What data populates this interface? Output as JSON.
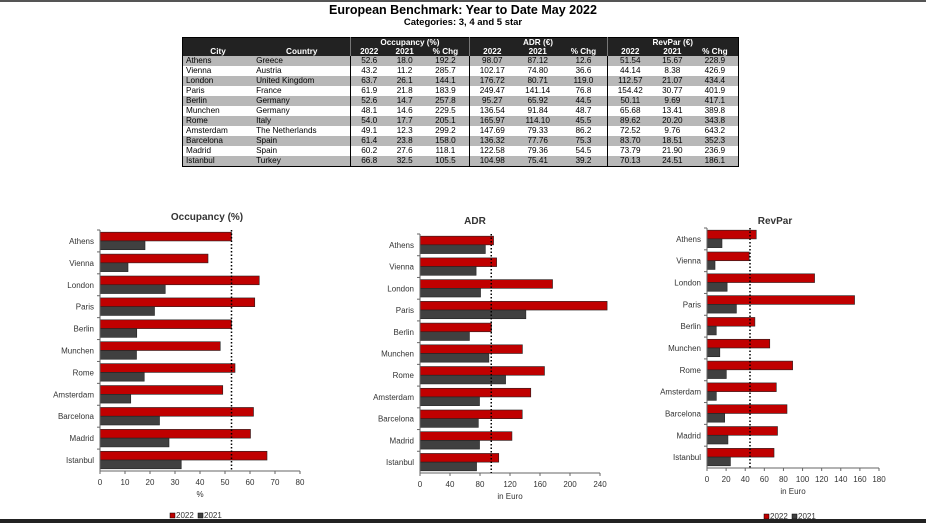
{
  "title": "European Benchmark: Year to Date May 2022",
  "subtitle": "Categories: 3, 4 and 5 star",
  "table": {
    "group_headers": [
      "Occupancy (%)",
      "ADR (€)",
      "RevPar (€)"
    ],
    "columns": [
      "City",
      "Country",
      "2022",
      "2021",
      "% Chg",
      "2022",
      "2021",
      "% Chg",
      "2022",
      "2021",
      "% Chg"
    ],
    "rows": [
      [
        "Athens",
        "Greece",
        "52.6",
        "18.0",
        "192.2",
        "98.07",
        "87.12",
        "12.6",
        "51.54",
        "15.67",
        "228.9"
      ],
      [
        "Vienna",
        "Austria",
        "43.2",
        "11.2",
        "285.7",
        "102.17",
        "74.80",
        "36.6",
        "44.14",
        "8.38",
        "426.9"
      ],
      [
        "London",
        "United Kingdom",
        "63.7",
        "26.1",
        "144.1",
        "176.72",
        "80.71",
        "119.0",
        "112.57",
        "21.07",
        "434.4"
      ],
      [
        "Paris",
        "France",
        "61.9",
        "21.8",
        "183.9",
        "249.47",
        "141.14",
        "76.8",
        "154.42",
        "30.77",
        "401.9"
      ],
      [
        "Berlin",
        "Germany",
        "52.6",
        "14.7",
        "257.8",
        "95.27",
        "65.92",
        "44.5",
        "50.11",
        "9.69",
        "417.1"
      ],
      [
        "Munchen",
        "Germany",
        "48.1",
        "14.6",
        "229.5",
        "136.54",
        "91.84",
        "48.7",
        "65.68",
        "13.41",
        "389.8"
      ],
      [
        "Rome",
        "Italy",
        "54.0",
        "17.7",
        "205.1",
        "165.97",
        "114.10",
        "45.5",
        "89.62",
        "20.20",
        "343.8"
      ],
      [
        "Amsterdam",
        "The Netherlands",
        "49.1",
        "12.3",
        "299.2",
        "147.69",
        "79.33",
        "86.2",
        "72.52",
        "9.76",
        "643.2"
      ],
      [
        "Barcelona",
        "Spain",
        "61.4",
        "23.8",
        "158.0",
        "136.32",
        "77.76",
        "75.3",
        "83.70",
        "18.51",
        "352.3"
      ],
      [
        "Madrid",
        "Spain",
        "60.2",
        "27.6",
        "118.1",
        "122.58",
        "79.36",
        "54.5",
        "73.79",
        "21.90",
        "236.9"
      ],
      [
        "Istanbul",
        "Turkey",
        "66.8",
        "32.5",
        "105.5",
        "104.98",
        "75.41",
        "39.2",
        "70.13",
        "24.51",
        "186.1"
      ]
    ]
  },
  "colors": {
    "s2022": "#c00000",
    "s2021": "#404040"
  },
  "chart_data": [
    {
      "type": "bar",
      "title": "Occupancy (%)",
      "xlabel": "%",
      "xlim": [
        0,
        80
      ],
      "ticks": [
        0,
        10,
        20,
        30,
        40,
        50,
        60,
        70,
        80
      ],
      "reference_line": 52.6,
      "categories": [
        "Athens",
        "Vienna",
        "London",
        "Paris",
        "Berlin",
        "Munchen",
        "Rome",
        "Amsterdam",
        "Barcelona",
        "Madrid",
        "Istanbul"
      ],
      "series": [
        {
          "name": "2022",
          "values": [
            52.6,
            43.2,
            63.7,
            61.9,
            52.6,
            48.1,
            54.0,
            49.1,
            61.4,
            60.2,
            66.8
          ]
        },
        {
          "name": "2021",
          "values": [
            18.0,
            11.2,
            26.1,
            21.8,
            14.7,
            14.6,
            17.7,
            12.3,
            23.8,
            27.6,
            32.5
          ]
        }
      ],
      "legend": "bottom"
    },
    {
      "type": "bar",
      "title": "ADR",
      "xlabel": "in Euro",
      "xlim": [
        0,
        240
      ],
      "ticks": [
        0,
        40,
        80,
        120,
        160,
        200,
        240
      ],
      "reference_line": 95,
      "categories": [
        "Athens",
        "Vienna",
        "London",
        "Paris",
        "Berlin",
        "Munchen",
        "Rome",
        "Amsterdam",
        "Barcelona",
        "Madrid",
        "Istanbul"
      ],
      "series": [
        {
          "name": "2022",
          "values": [
            98.07,
            102.17,
            176.72,
            249.47,
            95.27,
            136.54,
            165.97,
            147.69,
            136.32,
            122.58,
            104.98
          ]
        },
        {
          "name": "2021",
          "values": [
            87.12,
            74.8,
            80.71,
            141.14,
            65.92,
            91.84,
            114.1,
            79.33,
            77.76,
            79.36,
            75.41
          ]
        }
      ],
      "legend": "none"
    },
    {
      "type": "bar",
      "title": "RevPar",
      "xlabel": "in Euro",
      "xlim": [
        0,
        180
      ],
      "ticks": [
        0,
        20,
        40,
        60,
        80,
        100,
        120,
        140,
        160,
        180
      ],
      "reference_line": 45,
      "categories": [
        "Athens",
        "Vienna",
        "London",
        "Paris",
        "Berlin",
        "Munchen",
        "Rome",
        "Amsterdam",
        "Barcelona",
        "Madrid",
        "Istanbul"
      ],
      "series": [
        {
          "name": "2022",
          "values": [
            51.54,
            44.14,
            112.57,
            154.42,
            50.11,
            65.68,
            89.62,
            72.52,
            83.7,
            73.79,
            70.13
          ]
        },
        {
          "name": "2021",
          "values": [
            15.67,
            8.38,
            21.07,
            30.77,
            9.69,
            13.41,
            20.2,
            9.76,
            18.51,
            21.9,
            24.51
          ]
        }
      ],
      "legend": "bottom"
    }
  ]
}
